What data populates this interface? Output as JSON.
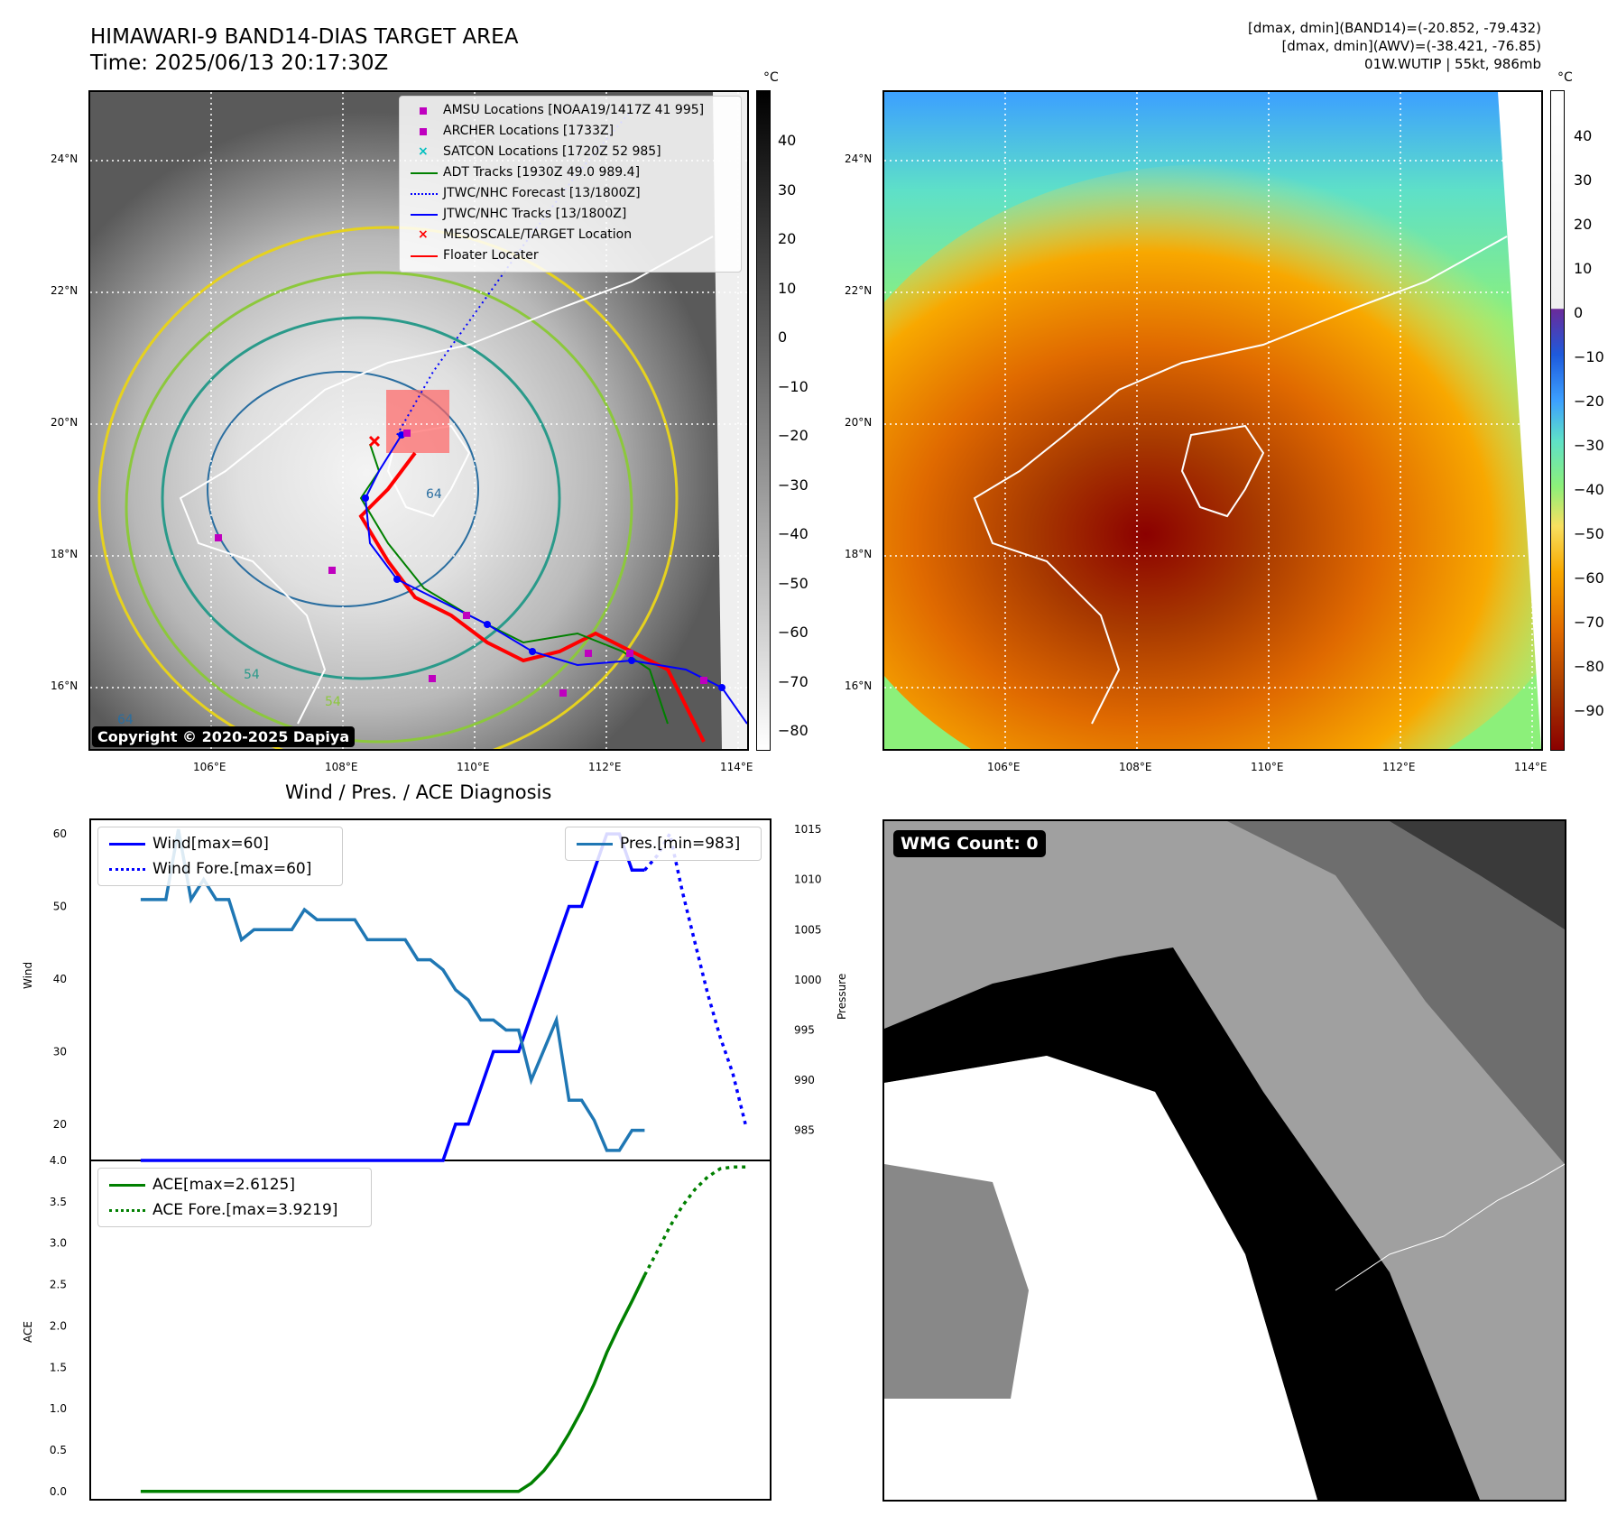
{
  "header": {
    "title_line1": "HIMAWARI-9 BAND14-DIAS TARGET AREA",
    "title_line2": "Time: 2025/06/13 20:17:30Z",
    "info_line1": "[dmax, dmin](BAND14)=(-20.852, -79.432)",
    "info_line2": "[dmax, dmin](AWV)=(-38.421, -76.85)",
    "info_line3": "01W.WUTIP | 55kt, 986mb"
  },
  "map": {
    "lat_labels": [
      "24°N",
      "22°N",
      "20°N",
      "18°N",
      "16°N"
    ],
    "lon_labels": [
      "106°E",
      "108°E",
      "110°E",
      "112°E",
      "114°E"
    ],
    "copyright": "Copyright © 2020-2025 Dapiya",
    "contour_labels": [
      "64",
      "54",
      "64",
      "54"
    ],
    "legend": [
      {
        "label": "AMSU Locations [NOAA19/1417Z 41 995]",
        "color": "#bf00bf",
        "marker": "square"
      },
      {
        "label": "ARCHER Locations [1733Z]",
        "color": "#bf00bf",
        "marker": "square"
      },
      {
        "label": "SATCON Locations [1720Z 52 985]",
        "color": "#00bfbf",
        "marker": "x"
      },
      {
        "label": "ADT Tracks [1930Z 49.0 989.4]",
        "color": "#008000",
        "marker": "line"
      },
      {
        "label": "JTWC/NHC Forecast [13/1800Z]",
        "color": "#0000ff",
        "marker": "dotted"
      },
      {
        "label": "JTWC/NHC Tracks [13/1800Z]",
        "color": "#0000ff",
        "marker": "line-dot"
      },
      {
        "label": "MESOSCALE/TARGET Location",
        "color": "#ff0000",
        "marker": "x"
      },
      {
        "label": "Floater Locater",
        "color": "#ff0000",
        "marker": "line"
      }
    ]
  },
  "colorbar_gray": {
    "unit": "°C",
    "ticks": [
      "40",
      "30",
      "20",
      "10",
      "0",
      "−10",
      "−20",
      "−30",
      "−40",
      "−50",
      "−60",
      "−70",
      "−80"
    ]
  },
  "colorbar_awv": {
    "unit": "°C",
    "ticks": [
      "40",
      "30",
      "20",
      "10",
      "0",
      "−10",
      "−20",
      "−30",
      "−40",
      "−50",
      "−60",
      "−70",
      "−80",
      "−90"
    ]
  },
  "wmg": {
    "label": "WMG Count: 0"
  },
  "diagnosis": {
    "title": "Wind / Pres. / ACE Diagnosis",
    "wind_axis_label": "Wind",
    "pressure_axis_label": "Pressure",
    "ace_axis_label": "ACE",
    "wind_ticks": [
      "60",
      "50",
      "40",
      "30",
      "20"
    ],
    "pressure_ticks": [
      "1015",
      "1010",
      "1005",
      "1000",
      "995",
      "990",
      "985"
    ],
    "ace_ticks": [
      "4.0",
      "3.5",
      "3.0",
      "2.5",
      "2.0",
      "1.5",
      "1.0",
      "0.5",
      "0.0"
    ],
    "legend_wind": "Wind[max=60]",
    "legend_wind_fore": "Wind Fore.[max=60]",
    "legend_pres": "Pres.[min=983]",
    "legend_ace": "ACE[max=2.6125]",
    "legend_ace_fore": "ACE Fore.[max=3.9219]"
  },
  "chart_data": [
    {
      "type": "line",
      "title": "Wind / Pres. / ACE Diagnosis",
      "ylabel": "Wind",
      "ylim": [
        15,
        62
      ],
      "series": [
        {
          "name": "Wind[max=60]",
          "color": "#0000ff",
          "style": "solid",
          "x": [
            0,
            1,
            2,
            3,
            4,
            5,
            6,
            7,
            8,
            9,
            10,
            11,
            12,
            13,
            14,
            15,
            16,
            17,
            18,
            19,
            20,
            21,
            22,
            23,
            24,
            25,
            26,
            27,
            28,
            29,
            30,
            31,
            32,
            33,
            34,
            35,
            36,
            37,
            38,
            39,
            40
          ],
          "y": [
            15,
            15,
            15,
            15,
            15,
            15,
            15,
            15,
            15,
            15,
            15,
            15,
            15,
            15,
            15,
            15,
            15,
            15,
            15,
            15,
            15,
            15,
            15,
            15,
            15,
            20,
            20,
            25,
            30,
            30,
            30,
            35,
            40,
            45,
            50,
            50,
            55,
            60,
            60,
            55,
            55
          ]
        },
        {
          "name": "Wind Fore.[max=60]",
          "color": "#0000ff",
          "style": "dotted",
          "x": [
            40,
            41,
            42,
            43,
            44,
            45,
            46,
            47,
            48
          ],
          "y": [
            55,
            57,
            60,
            52,
            45,
            38,
            32,
            27,
            20
          ]
        }
      ]
    },
    {
      "type": "line",
      "ylabel": "Pressure",
      "ylim": [
        982,
        1016
      ],
      "series": [
        {
          "name": "Pres.[min=983]",
          "color": "#1f77b4",
          "style": "solid",
          "x": [
            0,
            1,
            2,
            3,
            4,
            5,
            6,
            7,
            8,
            9,
            10,
            11,
            12,
            13,
            14,
            15,
            16,
            17,
            18,
            19,
            20,
            21,
            22,
            23,
            24,
            25,
            26,
            27,
            28,
            29,
            30,
            31,
            32,
            33,
            34,
            35,
            36,
            37,
            38,
            39,
            40
          ],
          "y": [
            1008,
            1008,
            1008,
            1015,
            1008,
            1010,
            1008,
            1008,
            1004,
            1005,
            1005,
            1005,
            1005,
            1007,
            1006,
            1006,
            1006,
            1006,
            1004,
            1004,
            1004,
            1004,
            1002,
            1002,
            1001,
            999,
            998,
            996,
            996,
            995,
            995,
            990,
            993,
            996,
            988,
            988,
            986,
            983,
            983,
            985,
            985
          ]
        }
      ]
    },
    {
      "type": "line",
      "ylabel": "ACE",
      "ylim": [
        -0.1,
        4.0
      ],
      "series": [
        {
          "name": "ACE[max=2.6125]",
          "color": "#008000",
          "style": "solid",
          "x": [
            0,
            1,
            2,
            3,
            4,
            5,
            6,
            7,
            8,
            9,
            10,
            11,
            12,
            13,
            14,
            15,
            16,
            17,
            18,
            19,
            20,
            21,
            22,
            23,
            24,
            25,
            26,
            27,
            28,
            29,
            30,
            31,
            32,
            33,
            34,
            35,
            36,
            37,
            38,
            39,
            40
          ],
          "y": [
            0,
            0,
            0,
            0,
            0,
            0,
            0,
            0,
            0,
            0,
            0,
            0,
            0,
            0,
            0,
            0,
            0,
            0,
            0,
            0,
            0,
            0,
            0,
            0,
            0,
            0,
            0,
            0,
            0,
            0,
            0,
            0.1,
            0.25,
            0.45,
            0.7,
            0.98,
            1.3,
            1.68,
            2.0,
            2.3,
            2.6125
          ]
        },
        {
          "name": "ACE Fore.[max=3.9219]",
          "color": "#008000",
          "style": "dotted",
          "x": [
            40,
            41,
            42,
            43,
            44,
            45,
            46,
            47,
            48
          ],
          "y": [
            2.6125,
            2.9,
            3.2,
            3.45,
            3.65,
            3.8,
            3.9,
            3.92,
            3.9219
          ]
        }
      ]
    }
  ]
}
